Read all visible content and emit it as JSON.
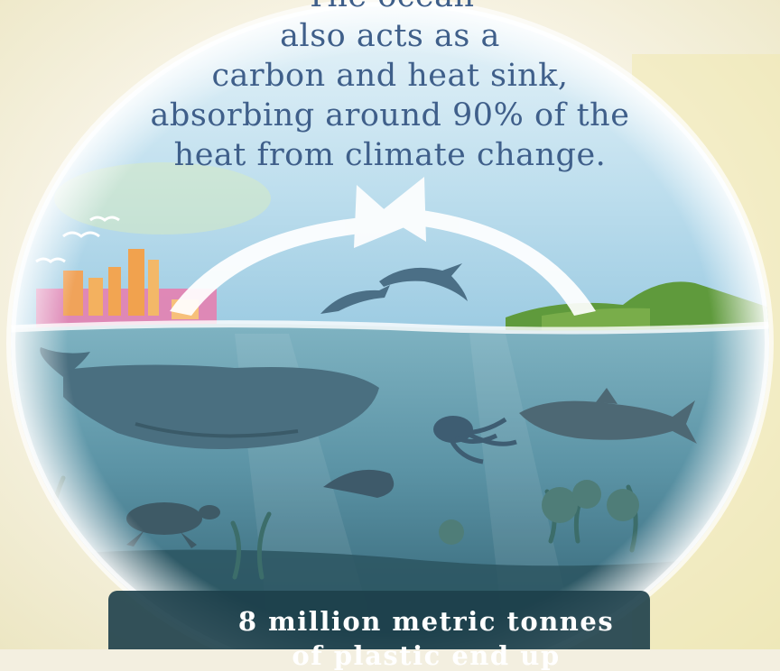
{
  "headline": {
    "line1": "The ocean",
    "line2": "also acts as a",
    "line3": "carbon and heat sink,",
    "line4": "absorbing around 90% of the",
    "line5": "heat from climate change."
  },
  "footer": {
    "line1": "8 million metric tonnes",
    "line2": "of plastic end up"
  },
  "colors": {
    "headline_text": "#3f5f8a",
    "sky": "#cfe6f2",
    "sea": "#5e95a6",
    "deep_sea": "#2f5f6e",
    "city": "#e66fa6",
    "island": "#5f9a3c",
    "footer_text": "#ffffff"
  },
  "icons": [
    "whale-icon",
    "dolphin-icon",
    "octopus-icon",
    "shark-icon",
    "manta-ray-icon",
    "turtle-icon",
    "seaweed-icon",
    "seagull-icon",
    "city-skyline-icon",
    "island-icon",
    "carbon-cycle-arrows-icon"
  ]
}
